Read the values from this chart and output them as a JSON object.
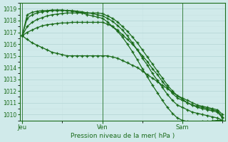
{
  "title": "",
  "xlabel": "Pression niveau de la mer( hPa )",
  "ylabel": "",
  "background_color": "#d0eaea",
  "grid_color": "#b8d8d8",
  "minor_grid_color": "#c8e4e4",
  "line_color": "#1a6b1a",
  "tick_label_color": "#1a6b1a",
  "axis_label_color": "#1a6b1a",
  "ylim": [
    1009.5,
    1019.5
  ],
  "yticks": [
    1010,
    1011,
    1012,
    1013,
    1014,
    1015,
    1016,
    1017,
    1018,
    1019
  ],
  "day_labels": [
    "Jeu",
    "Ven",
    "Sam"
  ],
  "day_positions": [
    0,
    16,
    32
  ],
  "num_points": 41,
  "series": [
    [
      1016.7,
      1016.4,
      1016.1,
      1015.9,
      1015.7,
      1015.5,
      1015.3,
      1015.2,
      1015.1,
      1015.0,
      1015.0,
      1015.0,
      1015.0,
      1015.0,
      1015.0,
      1015.0,
      1015.0,
      1015.0,
      1014.9,
      1014.8,
      1014.6,
      1014.4,
      1014.2,
      1014.0,
      1013.7,
      1013.4,
      1013.1,
      1012.8,
      1012.5,
      1012.2,
      1011.9,
      1011.6,
      1011.4,
      1011.2,
      1011.0,
      1010.8,
      1010.7,
      1010.6,
      1010.5,
      1010.4,
      1010.0
    ],
    [
      1016.7,
      1017.0,
      1017.2,
      1017.4,
      1017.55,
      1017.65,
      1017.7,
      1017.75,
      1017.8,
      1017.8,
      1017.85,
      1017.85,
      1017.85,
      1017.85,
      1017.85,
      1017.85,
      1017.85,
      1017.7,
      1017.5,
      1017.2,
      1016.8,
      1016.4,
      1016.0,
      1015.5,
      1015.0,
      1014.5,
      1013.9,
      1013.4,
      1012.8,
      1012.3,
      1011.8,
      1011.4,
      1011.2,
      1011.0,
      1010.8,
      1010.7,
      1010.6,
      1010.5,
      1010.4,
      1010.3,
      1009.8
    ],
    [
      1016.7,
      1017.5,
      1017.85,
      1018.1,
      1018.25,
      1018.4,
      1018.5,
      1018.55,
      1018.6,
      1018.65,
      1018.65,
      1018.65,
      1018.65,
      1018.65,
      1018.65,
      1018.65,
      1018.6,
      1018.4,
      1018.2,
      1017.9,
      1017.5,
      1017.1,
      1016.6,
      1016.1,
      1015.5,
      1014.9,
      1014.3,
      1013.7,
      1013.1,
      1012.5,
      1012.0,
      1011.6,
      1011.3,
      1011.0,
      1010.8,
      1010.6,
      1010.5,
      1010.4,
      1010.3,
      1010.2,
      1009.7
    ],
    [
      1016.7,
      1018.2,
      1018.5,
      1018.65,
      1018.75,
      1018.8,
      1018.85,
      1018.85,
      1018.85,
      1018.85,
      1018.85,
      1018.8,
      1018.75,
      1018.65,
      1018.6,
      1018.5,
      1018.4,
      1018.2,
      1017.95,
      1017.6,
      1017.2,
      1016.7,
      1016.1,
      1015.5,
      1014.8,
      1014.2,
      1013.5,
      1012.9,
      1012.3,
      1011.7,
      1011.2,
      1010.8,
      1010.6,
      1010.4,
      1010.2,
      1010.1,
      1010.0,
      1009.9,
      1009.8,
      1009.7,
      1009.5
    ],
    [
      1016.7,
      1018.5,
      1018.7,
      1018.8,
      1018.85,
      1018.85,
      1018.9,
      1018.9,
      1018.9,
      1018.85,
      1018.8,
      1018.75,
      1018.65,
      1018.5,
      1018.4,
      1018.3,
      1018.2,
      1017.9,
      1017.5,
      1017.1,
      1016.6,
      1016.0,
      1015.35,
      1014.65,
      1013.9,
      1013.2,
      1012.5,
      1011.85,
      1011.2,
      1010.6,
      1010.1,
      1009.7,
      1009.5,
      1009.4,
      1009.35,
      1009.35,
      1009.4,
      1009.4,
      1009.45,
      1009.5,
      1009.5
    ]
  ]
}
